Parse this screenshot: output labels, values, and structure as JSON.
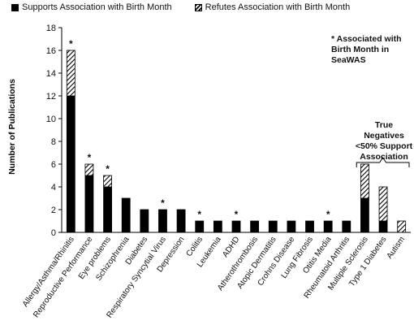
{
  "legend": {
    "supports": "Supports Association with Birth Month",
    "refutes": "Refutes Association with Birth Month"
  },
  "annotations": {
    "star_note": "* Associated with Birth Month in SeaWAS",
    "true_negatives": "True Negatives <50% Support Association"
  },
  "colors": {
    "supports": "#000000",
    "refutes": "#ffffff"
  },
  "chart_data": {
    "type": "bar",
    "stacked": true,
    "ylabel": "Number of Publications",
    "xlabel": "",
    "ylim": [
      0,
      18
    ],
    "yticks": [
      0,
      2,
      4,
      6,
      8,
      10,
      12,
      14,
      16,
      18
    ],
    "categories": [
      "Allergy/Asthma/Rhinitis",
      "Reproductive Performance",
      "Eye problems",
      "Schizophrenia",
      "Diabetes",
      "Respiratory Syncytial Virus",
      "Depression",
      "Colitis",
      "Leukemia",
      "ADHD",
      "Atherothrombosis",
      "Atopic Dermatitis",
      "Crohns Disease",
      "Lung Fibrosis",
      "Otitis Media",
      "Rheumatoid Arthritis",
      "Multiple Sclerosis",
      "Type 1 Diabetes",
      "Autism"
    ],
    "series": [
      {
        "name": "Supports Association with Birth Month",
        "values": [
          12,
          5,
          4,
          3,
          2,
          2,
          2,
          1,
          1,
          1,
          1,
          1,
          1,
          1,
          1,
          1,
          3,
          1,
          0
        ]
      },
      {
        "name": "Refutes Association with Birth Month",
        "values": [
          4,
          1,
          1,
          0,
          0,
          0,
          0,
          0,
          0,
          0,
          0,
          0,
          0,
          0,
          0,
          0,
          3,
          3,
          1
        ]
      }
    ],
    "starred": [
      true,
      true,
      true,
      false,
      false,
      true,
      false,
      true,
      false,
      true,
      false,
      false,
      false,
      false,
      true,
      false,
      false,
      false,
      false
    ],
    "star_symbol": "*",
    "legend_position": "top"
  }
}
